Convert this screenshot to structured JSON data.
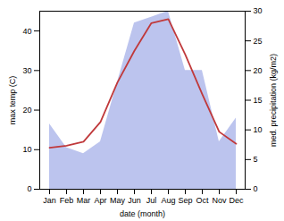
{
  "chart_data": {
    "type": "line",
    "categories": [
      "Jan",
      "Feb",
      "Mar",
      "Apr",
      "May",
      "Jun",
      "Jul",
      "Aug",
      "Sep",
      "Oct",
      "Nov",
      "Dec"
    ],
    "xlabel": "date (month)",
    "ylabel": "max temp (C)",
    "y2label": "med. precipitation (kg/m2)",
    "ylim": [
      0,
      45
    ],
    "yticks": [
      0,
      10,
      20,
      30,
      40
    ],
    "y2lim": [
      0,
      30
    ],
    "y2ticks": [
      0,
      5,
      10,
      15,
      20,
      25,
      30
    ],
    "series": [
      {
        "type": "area",
        "axis": "y2",
        "color": "#bcc4ee",
        "values": [
          11,
          7,
          6,
          8,
          18,
          28,
          29,
          30,
          20,
          20,
          8,
          12
        ]
      },
      {
        "type": "line",
        "color": "#c0393b",
        "values": [
          10.5,
          11.0,
          12.0,
          17.0,
          27.0,
          35.0,
          42.0,
          43.0,
          34.0,
          24.0,
          14.5,
          11.5
        ]
      }
    ]
  }
}
